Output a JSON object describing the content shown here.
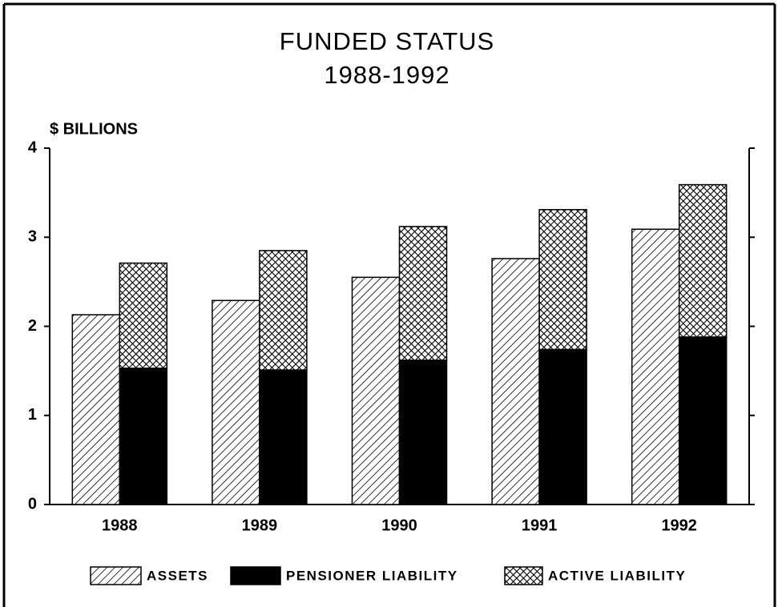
{
  "chart_data": {
    "type": "bar",
    "title": "FUNDED STATUS",
    "subtitle": "1988-1992",
    "y_label": "$ BILLIONS",
    "categories": [
      "1988",
      "1989",
      "1990",
      "1991",
      "1992"
    ],
    "series": [
      {
        "name": "ASSETS",
        "color": "#000000",
        "pattern": "hatch",
        "stack": "assets",
        "values": [
          2.13,
          2.29,
          2.55,
          2.76,
          3.09
        ]
      },
      {
        "name": "PENSIONER LIABILITY",
        "color": "#000000",
        "pattern": "solid",
        "stack": "liability",
        "values": [
          1.53,
          1.51,
          1.62,
          1.74,
          1.88
        ]
      },
      {
        "name": "ACTIVE LIABILITY",
        "color": "#000000",
        "pattern": "crosshatch",
        "stack": "liability",
        "values": [
          1.18,
          1.34,
          1.5,
          1.57,
          1.71
        ]
      }
    ],
    "ylim": [
      0,
      4
    ],
    "yticks": [
      0,
      1,
      2,
      3,
      4
    ],
    "legend": "bottom"
  }
}
